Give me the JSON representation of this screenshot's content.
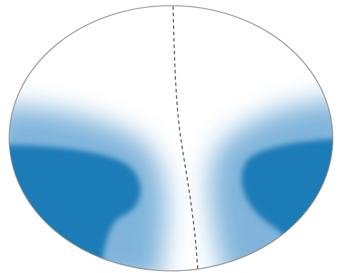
{
  "colors": {
    "background": "#ffffff",
    "fill": "#1b7bb8",
    "fill_light": "#6aa7d4",
    "outline": "#8a8a8a",
    "midline": "#444444"
  },
  "shapes": {
    "boundary": "ellipse",
    "dividing_line": "dashed",
    "shaded_lobes": [
      "left-lobe",
      "right-lobe"
    ]
  }
}
